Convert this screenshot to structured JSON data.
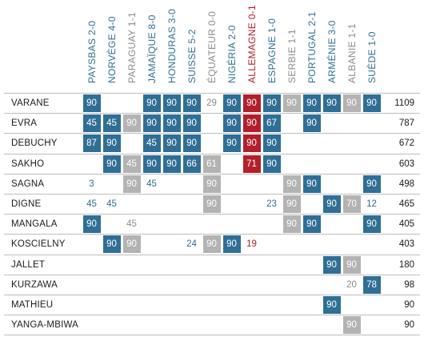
{
  "chart_data": {
    "type": "table",
    "colors": {
      "start": "#2f6f95",
      "sub": "#b3b3b3",
      "germany": "#b21f2a",
      "text_start": "#2f6f95",
      "text_sub": "#8c8c8c",
      "text_germany": "#b21f2a"
    },
    "columns": [
      {
        "label": "PAYSBAS 2-0",
        "style": "start"
      },
      {
        "label": "NORVÈGE 4-0",
        "style": "start"
      },
      {
        "label": "PARAGUAY 1-1",
        "style": "sub"
      },
      {
        "label": "JAMAÏQUE 8-0",
        "style": "start"
      },
      {
        "label": "HONDURAS 3-0",
        "style": "start"
      },
      {
        "label": "SUISSE 5-2",
        "style": "start"
      },
      {
        "label": "ÉQUATEUR 0-0",
        "style": "sub"
      },
      {
        "label": "NIGÉRIA 2-0",
        "style": "start"
      },
      {
        "label": "ALLEMAGNE 0-1",
        "style": "germany"
      },
      {
        "label": "ESPAGNE 1-0",
        "style": "start"
      },
      {
        "label": "SERBIE 1-1",
        "style": "sub"
      },
      {
        "label": "PORTUGAL 2-1",
        "style": "start"
      },
      {
        "label": "ARMÉNIE 3-0",
        "style": "start"
      },
      {
        "label": "ALBANIE 1-1",
        "style": "sub"
      },
      {
        "label": "SUÈDE 1-0",
        "style": "start"
      }
    ],
    "rows": [
      {
        "player": "VARANE",
        "total": "1109",
        "cells": [
          {
            "v": "90",
            "s": "start",
            "f": true
          },
          null,
          null,
          {
            "v": "90",
            "s": "start",
            "f": true
          },
          {
            "v": "90",
            "s": "start",
            "f": true
          },
          {
            "v": "90",
            "s": "start",
            "f": true
          },
          {
            "v": "29",
            "s": "sub",
            "f": false
          },
          {
            "v": "90",
            "s": "start",
            "f": true
          },
          {
            "v": "90",
            "s": "germany",
            "f": true
          },
          {
            "v": "90",
            "s": "start",
            "f": true
          },
          {
            "v": "90",
            "s": "sub",
            "f": true
          },
          {
            "v": "90",
            "s": "start",
            "f": true
          },
          {
            "v": "90",
            "s": "start",
            "f": true
          },
          {
            "v": "90",
            "s": "sub",
            "f": true
          },
          {
            "v": "90",
            "s": "start",
            "f": true
          }
        ]
      },
      {
        "player": "EVRA",
        "total": "787",
        "cells": [
          {
            "v": "45",
            "s": "start",
            "f": true
          },
          {
            "v": "45",
            "s": "start",
            "f": true
          },
          {
            "v": "90",
            "s": "sub",
            "f": true
          },
          {
            "v": "90",
            "s": "start",
            "f": true
          },
          {
            "v": "90",
            "s": "start",
            "f": true
          },
          {
            "v": "90",
            "s": "start",
            "f": true
          },
          null,
          {
            "v": "90",
            "s": "start",
            "f": true
          },
          {
            "v": "90",
            "s": "germany",
            "f": true
          },
          {
            "v": "67",
            "s": "start",
            "f": true
          },
          null,
          {
            "v": "90",
            "s": "start",
            "f": true
          },
          null,
          null,
          null
        ]
      },
      {
        "player": "DEBUCHY",
        "total": "672",
        "cells": [
          {
            "v": "87",
            "s": "start",
            "f": true
          },
          {
            "v": "90",
            "s": "start",
            "f": true
          },
          null,
          {
            "v": "45",
            "s": "start",
            "f": true
          },
          {
            "v": "90",
            "s": "start",
            "f": true
          },
          {
            "v": "90",
            "s": "start",
            "f": true
          },
          null,
          {
            "v": "90",
            "s": "start",
            "f": true
          },
          {
            "v": "90",
            "s": "germany",
            "f": true
          },
          {
            "v": "90",
            "s": "start",
            "f": true
          },
          null,
          null,
          null,
          null,
          null
        ]
      },
      {
        "player": "SAKHO",
        "total": "603",
        "cells": [
          null,
          {
            "v": "90",
            "s": "start",
            "f": true
          },
          {
            "v": "45",
            "s": "sub",
            "f": true
          },
          {
            "v": "90",
            "s": "start",
            "f": true
          },
          {
            "v": "90",
            "s": "start",
            "f": true
          },
          {
            "v": "66",
            "s": "start",
            "f": true
          },
          {
            "v": "61",
            "s": "sub",
            "f": true
          },
          null,
          {
            "v": "71",
            "s": "germany",
            "f": true
          },
          {
            "v": "90",
            "s": "start",
            "f": true
          },
          null,
          null,
          null,
          null,
          null
        ]
      },
      {
        "player": "SAGNA",
        "total": "498",
        "cells": [
          {
            "v": "3",
            "s": "start",
            "f": false
          },
          null,
          {
            "v": "90",
            "s": "sub",
            "f": true
          },
          {
            "v": "45",
            "s": "start",
            "f": false
          },
          null,
          null,
          {
            "v": "90",
            "s": "sub",
            "f": true
          },
          null,
          null,
          null,
          {
            "v": "90",
            "s": "sub",
            "f": true
          },
          {
            "v": "90",
            "s": "start",
            "f": true
          },
          null,
          null,
          {
            "v": "90",
            "s": "start",
            "f": true
          }
        ]
      },
      {
        "player": "DIGNE",
        "total": "465",
        "cells": [
          {
            "v": "45",
            "s": "start",
            "f": false
          },
          {
            "v": "45",
            "s": "start",
            "f": false
          },
          null,
          null,
          null,
          null,
          {
            "v": "90",
            "s": "sub",
            "f": true
          },
          null,
          null,
          {
            "v": "23",
            "s": "start",
            "f": false
          },
          {
            "v": "90",
            "s": "sub",
            "f": true
          },
          null,
          {
            "v": "90",
            "s": "start",
            "f": true
          },
          {
            "v": "70",
            "s": "sub",
            "f": true
          },
          {
            "v": "12",
            "s": "start",
            "f": false
          }
        ]
      },
      {
        "player": "MANGALA",
        "total": "405",
        "cells": [
          {
            "v": "90",
            "s": "start",
            "f": true
          },
          null,
          {
            "v": "45",
            "s": "sub",
            "f": false
          },
          null,
          null,
          null,
          null,
          null,
          null,
          null,
          {
            "v": "90",
            "s": "sub",
            "f": true
          },
          {
            "v": "90",
            "s": "start",
            "f": true
          },
          null,
          null,
          {
            "v": "90",
            "s": "start",
            "f": true
          }
        ]
      },
      {
        "player": "KOSCIELNY",
        "total": "403",
        "cells": [
          null,
          {
            "v": "90",
            "s": "start",
            "f": true
          },
          {
            "v": "90",
            "s": "sub",
            "f": true
          },
          null,
          null,
          {
            "v": "24",
            "s": "start",
            "f": false
          },
          {
            "v": "90",
            "s": "sub",
            "f": true
          },
          {
            "v": "90",
            "s": "start",
            "f": true
          },
          {
            "v": "19",
            "s": "germany",
            "f": false
          },
          null,
          null,
          null,
          null,
          null,
          null
        ]
      },
      {
        "player": "JALLET",
        "total": "180",
        "cells": [
          null,
          null,
          null,
          null,
          null,
          null,
          null,
          null,
          null,
          null,
          null,
          null,
          {
            "v": "90",
            "s": "start",
            "f": true
          },
          {
            "v": "90",
            "s": "sub",
            "f": true
          },
          null
        ]
      },
      {
        "player": "KURZAWA",
        "total": "98",
        "cells": [
          null,
          null,
          null,
          null,
          null,
          null,
          null,
          null,
          null,
          null,
          null,
          null,
          null,
          {
            "v": "20",
            "s": "sub",
            "f": false
          },
          {
            "v": "78",
            "s": "start",
            "f": true
          }
        ]
      },
      {
        "player": "MATHIEU",
        "total": "90",
        "cells": [
          null,
          null,
          null,
          null,
          null,
          null,
          null,
          null,
          null,
          null,
          null,
          null,
          {
            "v": "90",
            "s": "start",
            "f": true
          },
          null,
          null
        ]
      },
      {
        "player": "YANGA-MBIWA",
        "total": "90",
        "cells": [
          null,
          null,
          null,
          null,
          null,
          null,
          null,
          null,
          null,
          null,
          null,
          null,
          null,
          {
            "v": "90",
            "s": "sub",
            "f": true
          },
          null
        ]
      }
    ]
  }
}
